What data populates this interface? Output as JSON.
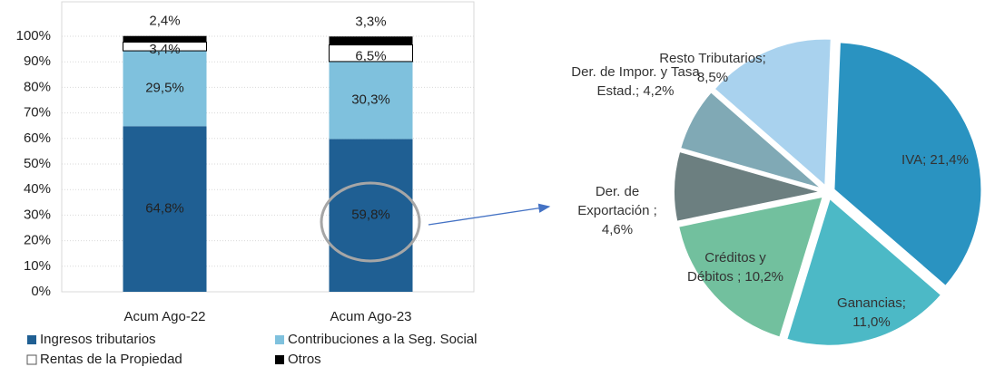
{
  "chart_data": [
    {
      "type": "stacked_bar",
      "categories": [
        "Acum Ago-22",
        "Acum Ago-23"
      ],
      "series": [
        {
          "name": "Ingresos tributarios",
          "color": "#1f5f93",
          "values": [
            64.8,
            59.8
          ],
          "value_labels": [
            "64,8%",
            "59,8%"
          ]
        },
        {
          "name": "Contribuciones a la Seg. Social",
          "color": "#7fc1dd",
          "values": [
            29.5,
            30.3
          ],
          "value_labels": [
            "29,5%",
            "30,3%"
          ]
        },
        {
          "name": "Rentas de la Propiedad",
          "color": "#ffffff",
          "values": [
            3.4,
            6.5
          ],
          "value_labels": [
            "3,4%",
            "6,5%"
          ]
        },
        {
          "name": "Otros",
          "color": "#000000",
          "values": [
            2.4,
            3.3
          ],
          "value_labels": [
            "2,4%",
            "3,3%"
          ]
        }
      ],
      "ylim": [
        0,
        100
      ],
      "yticks": [
        {
          "value": 0,
          "label": "0%"
        },
        {
          "value": 10,
          "label": "10%"
        },
        {
          "value": 20,
          "label": "20%"
        },
        {
          "value": 30,
          "label": "30%"
        },
        {
          "value": 40,
          "label": "40%"
        },
        {
          "value": 50,
          "label": "50%"
        },
        {
          "value": 60,
          "label": "60%"
        },
        {
          "value": 70,
          "label": "70%"
        },
        {
          "value": 80,
          "label": "80%"
        },
        {
          "value": 90,
          "label": "90%"
        },
        {
          "value": 100,
          "label": "100%"
        }
      ],
      "grid": true,
      "legend": "bottom"
    },
    {
      "type": "pie",
      "categories": [
        "IVA",
        "Ganancias",
        "Créditos y Débitos",
        "Der. de Exportación",
        "Der. de Impor. y Tasa Estad.",
        "Resto Tributarios"
      ],
      "values": [
        21.4,
        11.0,
        10.2,
        4.6,
        4.2,
        8.5
      ],
      "value_labels": [
        "IVA; 21,4%",
        "Ganancias; 11,0%",
        "Créditos y Débitos ; 10,2%",
        "Der. de Exportación ; 4,6%",
        "Der. de Impor. y Tasa Estad.; 4,2%",
        "Resto Tributarios; 8,5%"
      ],
      "colors": [
        "#2a93c1",
        "#4cb9c6",
        "#72c09e",
        "#6c7f80",
        "#80a9b5",
        "#a9d2ee"
      ]
    }
  ]
}
